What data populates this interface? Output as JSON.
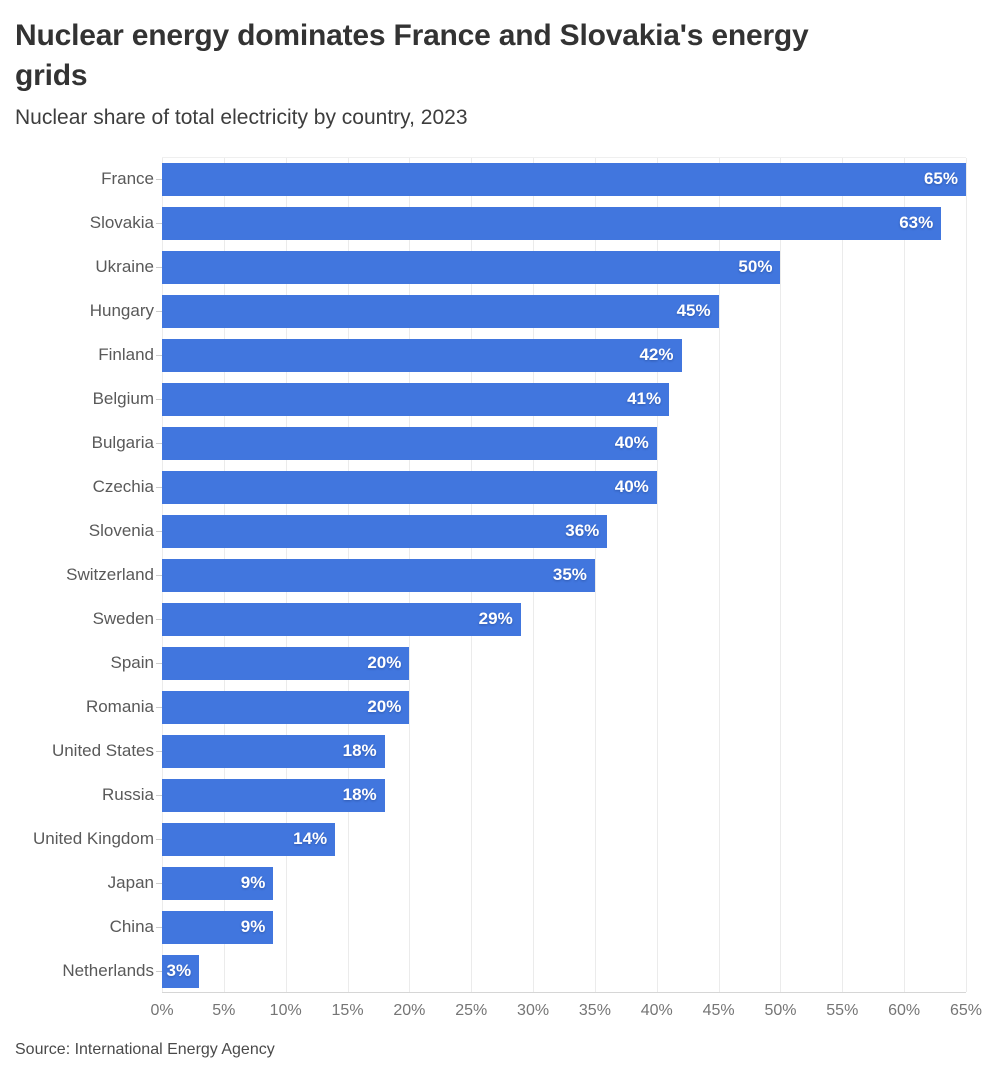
{
  "header": {
    "title": "Nuclear energy dominates France and Slovakia's energy\ngrids",
    "subtitle": "Nuclear share of total electricity by country, 2023"
  },
  "chart_data": {
    "type": "bar",
    "orientation": "horizontal",
    "title": "Nuclear energy dominates France and Slovakia's energy grids",
    "subtitle": "Nuclear share of total electricity by country, 2023",
    "categories": [
      "France",
      "Slovakia",
      "Ukraine",
      "Hungary",
      "Finland",
      "Belgium",
      "Bulgaria",
      "Czechia",
      "Slovenia",
      "Switzerland",
      "Sweden",
      "Spain",
      "Romania",
      "United States",
      "Russia",
      "United Kingdom",
      "Japan",
      "China",
      "Netherlands"
    ],
    "values": [
      65,
      63,
      50,
      45,
      42,
      41,
      40,
      40,
      36,
      35,
      29,
      20,
      20,
      18,
      18,
      14,
      9,
      9,
      3
    ],
    "value_labels": [
      "65%",
      "63%",
      "50%",
      "45%",
      "42%",
      "41%",
      "40%",
      "40%",
      "36%",
      "35%",
      "29%",
      "20%",
      "20%",
      "18%",
      "18%",
      "14%",
      "9%",
      "9%",
      "3%"
    ],
    "value_suffix": "%",
    "xlim": [
      0,
      65
    ],
    "xticks": [
      0,
      5,
      10,
      15,
      20,
      25,
      30,
      35,
      40,
      45,
      50,
      55,
      60,
      65
    ],
    "xtick_labels": [
      "0%",
      "5%",
      "10%",
      "15%",
      "20%",
      "25%",
      "30%",
      "35%",
      "40%",
      "45%",
      "50%",
      "55%",
      "60%",
      "65%"
    ],
    "grid": true,
    "legend": false,
    "bar_color": "#4176de"
  },
  "footer": {
    "source": "Source: International Energy Agency"
  },
  "colors": {
    "bar": "#4176de",
    "title_text": "#333333",
    "subtitle_text": "#3d3d3d",
    "category_text": "#595959",
    "tick_text": "#757575",
    "gridline": "#ebebeb",
    "axis_line": "#d6d6d6",
    "value_text": "#ffffff",
    "background": "#ffffff"
  }
}
